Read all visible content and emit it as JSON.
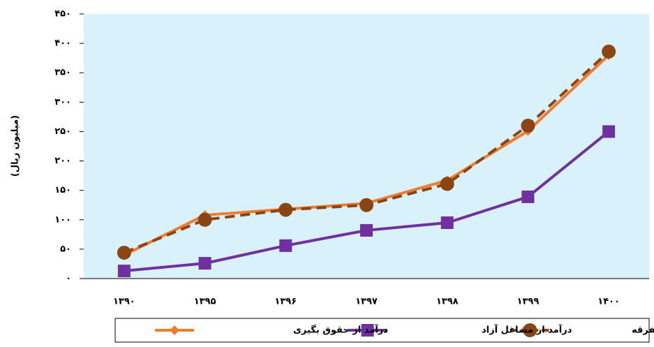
{
  "chart_data": {
    "type": "line",
    "y_label": "(میلیون ریال)",
    "categories": [
      "۱۳۹۰",
      "۱۳۹۵",
      "۱۳۹۶",
      "۱۳۹۷",
      "۱۳۹۸",
      "۱۳۹۹",
      "۱۴۰۰"
    ],
    "series": [
      {
        "name": "درآمدهای متفرقه",
        "color": "#8b4513",
        "dashed": true,
        "marker": "circle",
        "values": [
          44,
          100,
          117,
          125,
          161,
          260,
          386
        ]
      },
      {
        "name": "درآمد از مشاغل آزاد",
        "color": "#7030a0",
        "dashed": false,
        "marker": "square",
        "values": [
          13,
          26,
          56,
          82,
          95,
          139,
          250
        ]
      },
      {
        "name": "درآمد از حقوق بگیری",
        "color": "#ed7d31",
        "dashed": false,
        "marker": "diamond",
        "values": [
          40,
          108,
          118,
          128,
          167,
          251,
          380
        ]
      }
    ],
    "ylim": [
      0,
      450
    ],
    "yticks": [
      {
        "value": 0,
        "label": "۰"
      },
      {
        "value": 50,
        "label": "۵۰"
      },
      {
        "value": 100,
        "label": "۱۰۰"
      },
      {
        "value": 150,
        "label": "۱۵۰"
      },
      {
        "value": 200,
        "label": "۲۰۰"
      },
      {
        "value": 250,
        "label": "۲۵۰"
      },
      {
        "value": 300,
        "label": "۳۰۰"
      },
      {
        "value": 350,
        "label": "۳۵۰"
      },
      {
        "value": 400,
        "label": "۴۰۰"
      },
      {
        "value": 450,
        "label": "۴۵۰"
      }
    ],
    "plot_background": "#d9f1fb",
    "legend": "bottom"
  }
}
